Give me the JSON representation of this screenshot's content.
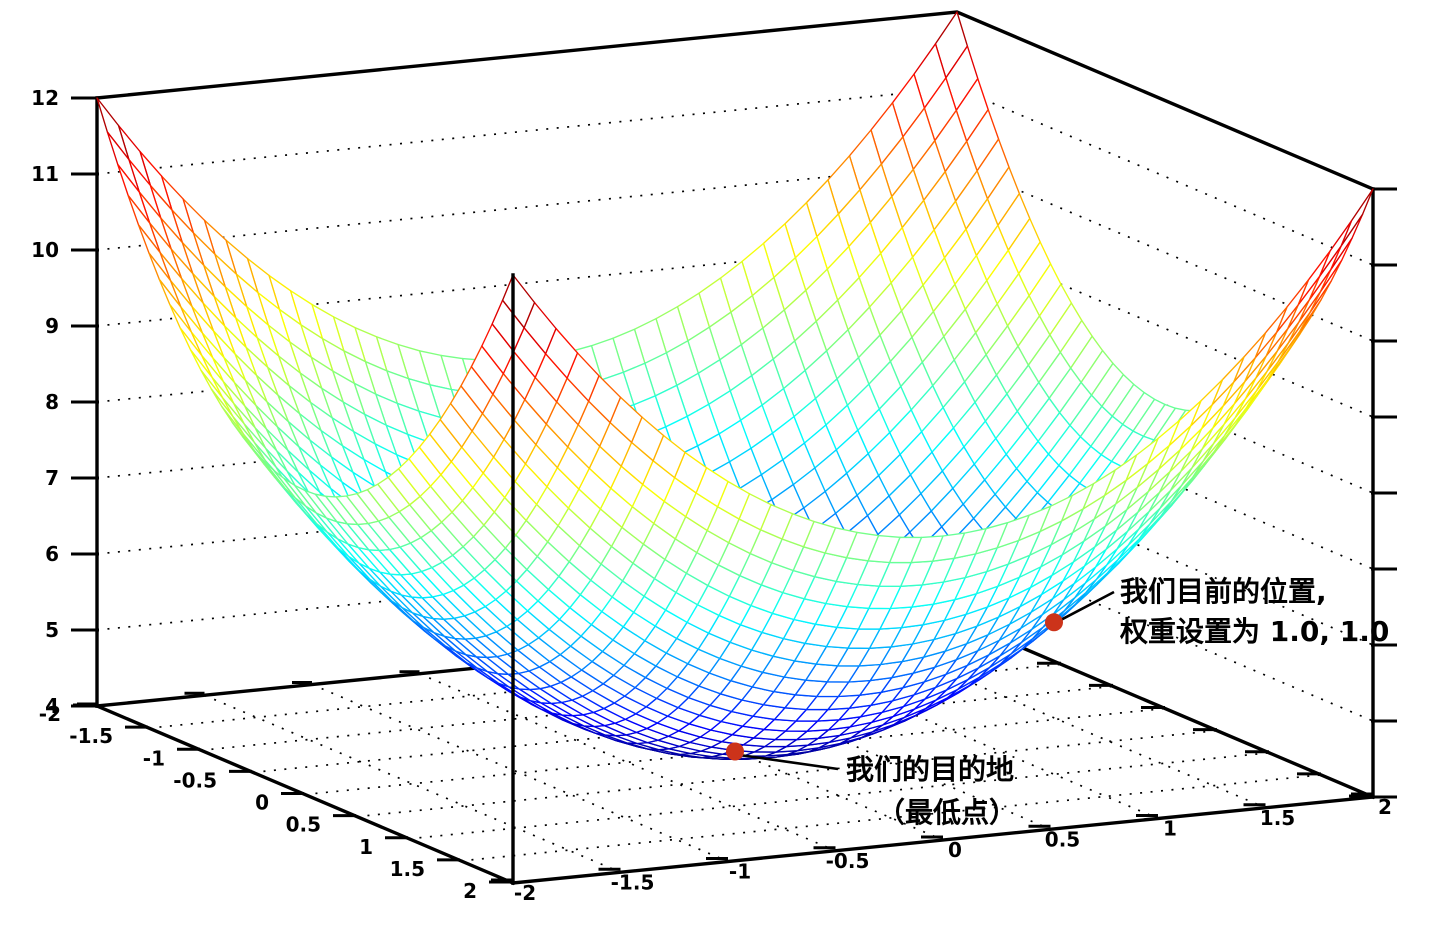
{
  "figure": {
    "background_color": "#ffffff",
    "title": ""
  },
  "chart_data": {
    "type": "surface",
    "description": "3D wireframe mesh of a paraboloid loss surface (jet colormap) with hidden-surface white facets",
    "function": "z = x^2 + y^2 + 4",
    "x_range": [
      -2,
      2
    ],
    "y_range": [
      -2,
      2
    ],
    "z_range": [
      4,
      12
    ],
    "grid_segments": 40,
    "colormap": "jet",
    "grid_on": true,
    "marker_color": "#cc331a",
    "line_color": "#000000",
    "z_axis": {
      "tick_values": [
        12,
        11,
        10,
        9,
        8,
        7,
        6,
        5,
        4
      ],
      "tick_labels": [
        "12",
        "11",
        "10",
        "9",
        "8",
        "7",
        "6",
        "5",
        "4"
      ],
      "wall_gridlines": [
        5,
        6,
        7,
        8,
        9,
        10,
        11
      ]
    },
    "bottom_left_axis": {
      "tick_values": [
        -2,
        -1.5,
        -1,
        -0.5,
        0,
        0.5,
        1,
        1.5,
        2
      ],
      "tick_labels": [
        "-2",
        "-1.5",
        "-1",
        "-0.5",
        "0",
        "0.5",
        "1",
        "1.5",
        "2"
      ]
    },
    "bottom_front_axis": {
      "tick_values": [
        -2,
        -1.5,
        -1,
        -0.5,
        0,
        0.5,
        1,
        1.5,
        2
      ],
      "tick_labels": [
        "-2",
        "-1.5",
        "-1",
        "-0.5",
        "0",
        "0.5",
        "1",
        "1.5",
        "2"
      ]
    },
    "floor_grid_values": [
      -1.5,
      -1,
      -0.5,
      0,
      0.5,
      1,
      1.5
    ],
    "annotations": [
      {
        "id": "current-position",
        "point": {
          "w1": 1.0,
          "w2": 1.0,
          "z": 6.0
        },
        "lines": [
          "我们目前的位置,",
          "权重设置为 1.0, 1.0"
        ]
      },
      {
        "id": "destination",
        "point": {
          "w1": 0.0,
          "w2": 0.0,
          "z": 4.0
        },
        "lines": [
          "我们的目的地",
          "（最低点）"
        ]
      }
    ]
  }
}
